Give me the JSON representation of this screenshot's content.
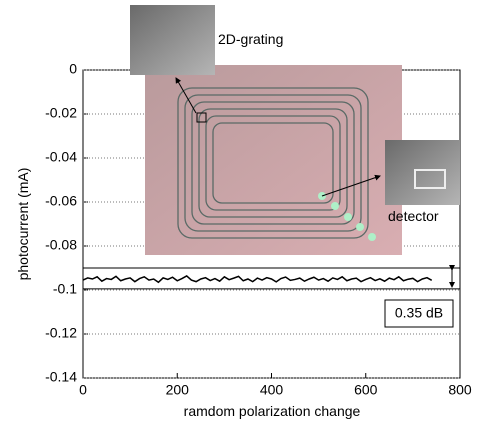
{
  "chart_data": {
    "type": "line",
    "xlabel": "ramdom polarization change",
    "ylabel": "photocurrent (mA)",
    "xlim": [
      0,
      800
    ],
    "xticks": [
      0,
      200,
      400,
      600,
      800
    ],
    "ylim": [
      -0.14,
      0
    ],
    "yticks": [
      0,
      -0.02,
      -0.04,
      -0.06,
      -0.08,
      -0.1,
      -0.12,
      -0.14
    ],
    "grid": true,
    "reference_lines": [
      -0.09,
      -0.0995
    ],
    "annotations": [
      "2D-grating",
      "detector",
      "0.35 dB"
    ],
    "series": [
      {
        "color": "#000000",
        "x": [
          0,
          10,
          20,
          30,
          40,
          50,
          60,
          70,
          80,
          90,
          100,
          110,
          120,
          130,
          140,
          150,
          160,
          170,
          180,
          190,
          200,
          210,
          220,
          230,
          240,
          250,
          260,
          270,
          280,
          290,
          300,
          310,
          320,
          330,
          340,
          350,
          360,
          370,
          380,
          390,
          400,
          410,
          420,
          430,
          440,
          450,
          460,
          470,
          480,
          490,
          500,
          510,
          520,
          530,
          540,
          550,
          560,
          570,
          580,
          590,
          600,
          610,
          620,
          630,
          640,
          650,
          660,
          670,
          680,
          690,
          700,
          710,
          720,
          730,
          740
        ],
        "values": [
          -0.0955,
          -0.0945,
          -0.095,
          -0.094,
          -0.096,
          -0.0948,
          -0.0952,
          -0.0938,
          -0.0958,
          -0.095,
          -0.0945,
          -0.0962,
          -0.0948,
          -0.094,
          -0.0955,
          -0.095,
          -0.0965,
          -0.0945,
          -0.0952,
          -0.0942,
          -0.0958,
          -0.0948,
          -0.0936,
          -0.0955,
          -0.0962,
          -0.095,
          -0.0944,
          -0.0957,
          -0.0948,
          -0.096,
          -0.094,
          -0.0953,
          -0.0946,
          -0.0938,
          -0.0958,
          -0.095,
          -0.0962,
          -0.0946,
          -0.0955,
          -0.0944,
          -0.095,
          -0.0963,
          -0.0948,
          -0.0941,
          -0.0956,
          -0.0952,
          -0.0946,
          -0.096,
          -0.095,
          -0.0942,
          -0.0955,
          -0.0948,
          -0.096,
          -0.0945,
          -0.0952,
          -0.094,
          -0.0958,
          -0.095,
          -0.0946,
          -0.0962,
          -0.0952,
          -0.0944,
          -0.0957,
          -0.0949,
          -0.096,
          -0.0946,
          -0.0953,
          -0.094,
          -0.0958,
          -0.0951,
          -0.0947,
          -0.0962,
          -0.095,
          -0.0944,
          -0.0956
        ]
      }
    ]
  }
}
